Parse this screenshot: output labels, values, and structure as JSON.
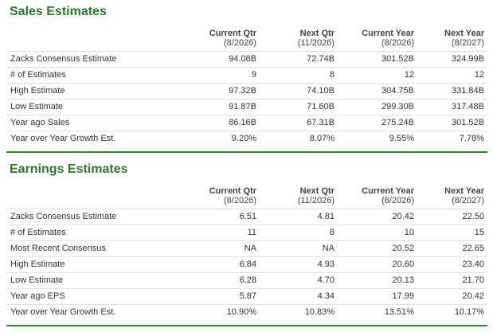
{
  "sales": {
    "title": "Sales Estimates",
    "columns": [
      {
        "label": "Current Qtr",
        "sub": "(8/2026)"
      },
      {
        "label": "Next Qtr",
        "sub": "(11/2026)"
      },
      {
        "label": "Current Year",
        "sub": "(8/2026)"
      },
      {
        "label": "Next Year",
        "sub": "(8/2027)"
      }
    ],
    "rows": [
      {
        "label": "Zacks Consensus Estimate",
        "values": [
          "94.08B",
          "72.74B",
          "301.52B",
          "324.99B"
        ]
      },
      {
        "label": "# of Estimates",
        "values": [
          "9",
          "8",
          "12",
          "12"
        ]
      },
      {
        "label": "High Estimate",
        "values": [
          "97.32B",
          "74.10B",
          "304.75B",
          "331.84B"
        ]
      },
      {
        "label": "Low Estimate",
        "values": [
          "91.87B",
          "71.60B",
          "299.30B",
          "317.48B"
        ]
      },
      {
        "label": "Year ago Sales",
        "values": [
          "86.16B",
          "67.31B",
          "275.24B",
          "301.52B"
        ]
      },
      {
        "label": "Year over Year Growth Est.",
        "values": [
          "9.20%",
          "8.07%",
          "9.55%",
          "7.78%"
        ]
      }
    ]
  },
  "earnings": {
    "title": "Earnings Estimates",
    "columns": [
      {
        "label": "Current Qtr",
        "sub": "(8/2026)"
      },
      {
        "label": "Next Qtr",
        "sub": "(11/2026)"
      },
      {
        "label": "Current Year",
        "sub": "(8/2026)"
      },
      {
        "label": "Next Year",
        "sub": "(8/2027)"
      }
    ],
    "rows": [
      {
        "label": "Zacks Consensus Estimate",
        "values": [
          "6.51",
          "4.81",
          "20.42",
          "22.50"
        ]
      },
      {
        "label": "# of Estimates",
        "values": [
          "11",
          "8",
          "10",
          "15"
        ]
      },
      {
        "label": "Most Recent Consensus",
        "values": [
          "NA",
          "NA",
          "20.52",
          "22.65"
        ]
      },
      {
        "label": "High Estimate",
        "values": [
          "6.84",
          "4.93",
          "20.60",
          "23.40"
        ]
      },
      {
        "label": "Low Estimate",
        "values": [
          "6.28",
          "4.70",
          "20.13",
          "21.70"
        ]
      },
      {
        "label": "Year ago EPS",
        "values": [
          "5.87",
          "4.34",
          "17.99",
          "20.42"
        ]
      },
      {
        "label": "Year over Year Growth Est.",
        "values": [
          "10.90%",
          "10.83%",
          "13.51%",
          "10.17%"
        ]
      }
    ]
  },
  "colors": {
    "title_green": "#2a7a2a",
    "rule_green": "#2a8a2a",
    "row_border": "#e2e2e2"
  }
}
